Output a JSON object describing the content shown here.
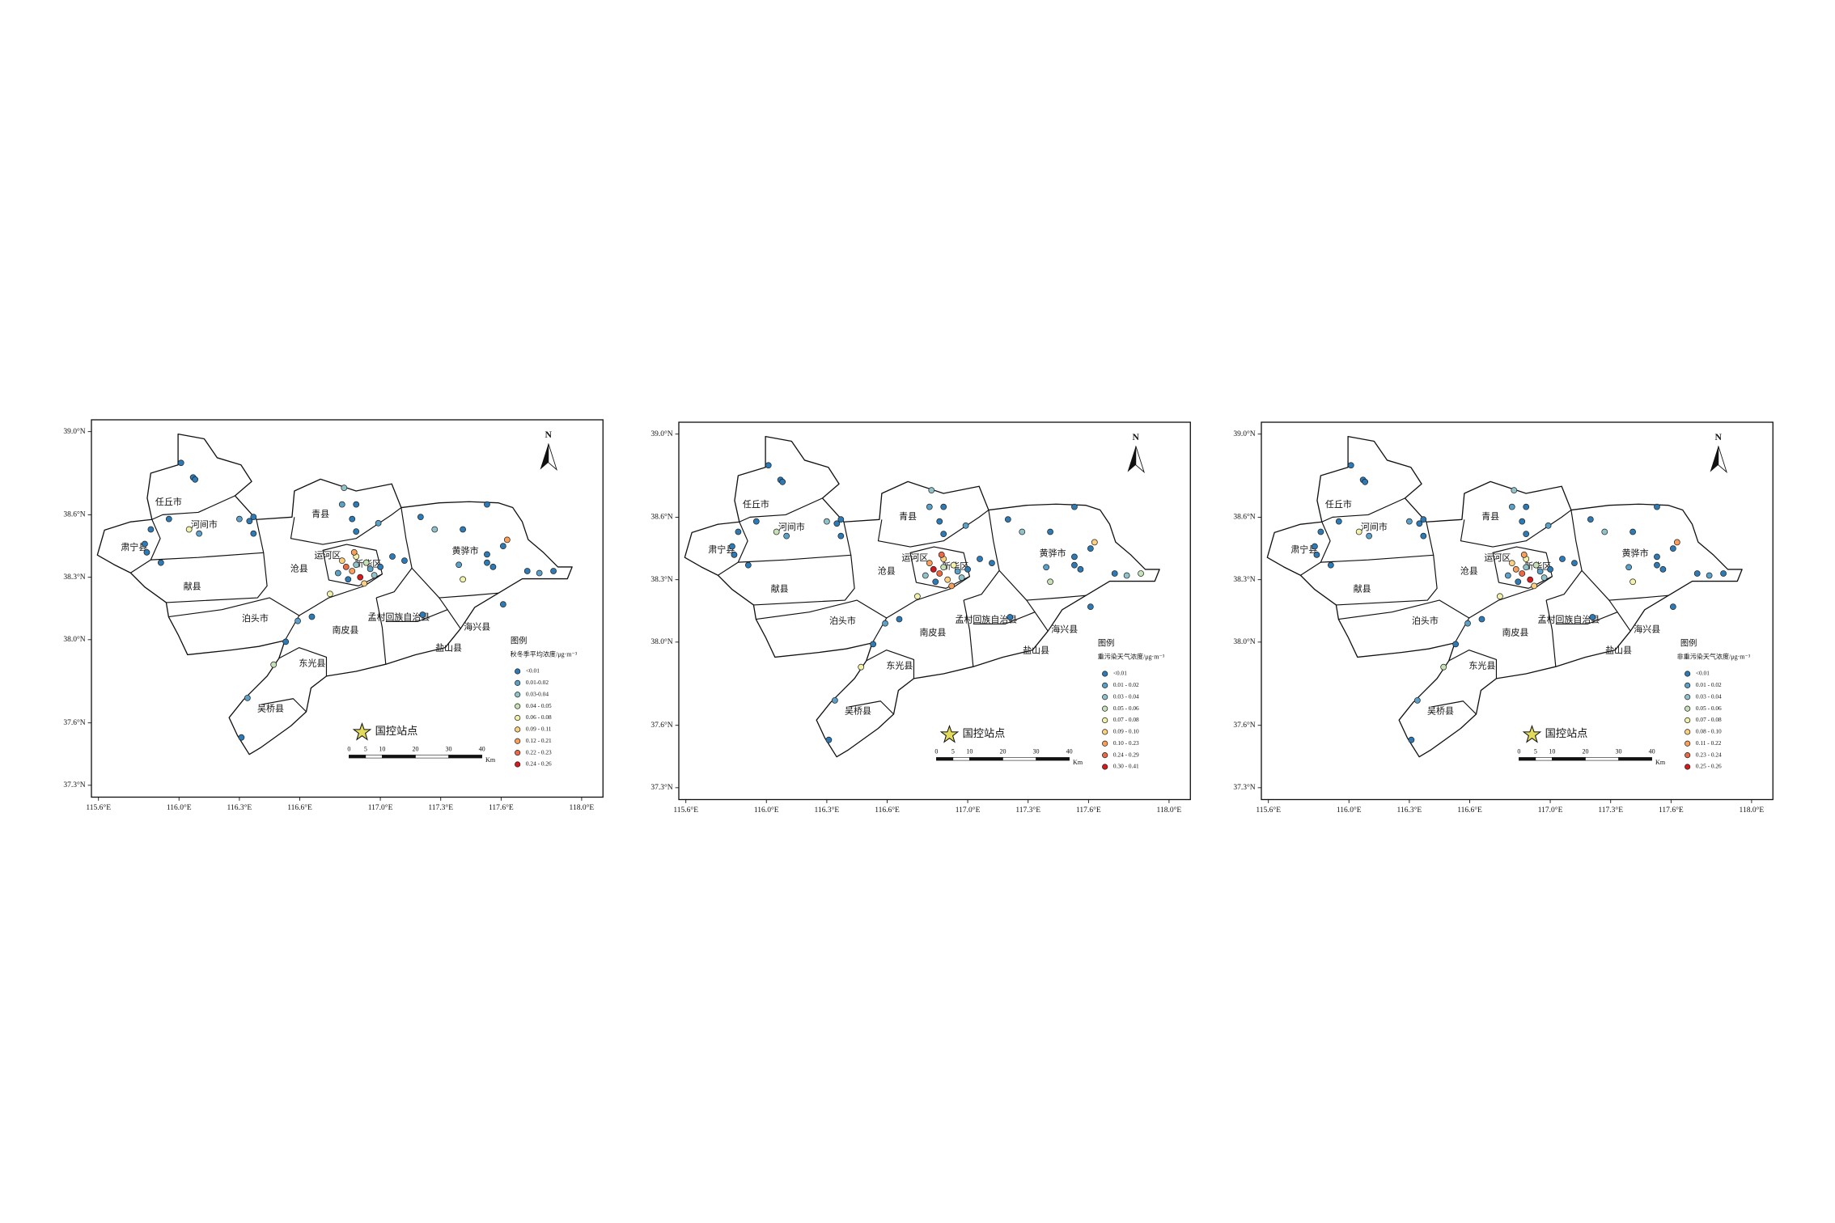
{
  "figure": {
    "lon_ticks": [
      {
        "value": 115.6,
        "label": "115.6°E"
      },
      {
        "value": 116.0,
        "label": "116.0°E"
      },
      {
        "value": 116.3,
        "label": "116.3°E"
      },
      {
        "value": 116.6,
        "label": "116.6°E"
      },
      {
        "value": 117.0,
        "label": "117.0°E"
      },
      {
        "value": 117.3,
        "label": "117.3°E"
      },
      {
        "value": 117.6,
        "label": "117.6°E"
      },
      {
        "value": 118.0,
        "label": "118.0°E"
      }
    ],
    "lon_lim": [
      115.565,
      118.106
    ],
    "lat_ticks": [
      {
        "value": 39.0,
        "label": "39.0°N"
      },
      {
        "value": 38.6,
        "label": "38.6°N"
      },
      {
        "value": 38.3,
        "label": "38.3°N"
      },
      {
        "value": 38.0,
        "label": "38.0°N"
      },
      {
        "value": 37.6,
        "label": "37.6°N"
      },
      {
        "value": 37.3,
        "label": "37.3°N"
      }
    ],
    "lat_lim": [
      37.243,
      39.057
    ],
    "counties": [
      "任丘市",
      "河间市",
      "肃宁县",
      "献县",
      "青县",
      "运河区",
      "沧县",
      "新华区",
      "黄骅市",
      "泊头市",
      "南皮县",
      "孟村回族自治县",
      "海兴县",
      "盐山县",
      "东光县",
      "吴桥县"
    ],
    "north": "N",
    "national_station": "国控站点",
    "scale_bar": {
      "ticks": [
        0,
        5,
        10,
        20,
        30,
        40
      ],
      "unit": "Km"
    },
    "legend_title": "图例",
    "class_colors": [
      "#2c7bb6",
      "#5aa0c8",
      "#8fc2c9",
      "#c4e2b6",
      "#f2f2a8",
      "#fdd07f",
      "#f99f5a",
      "#ec6a43",
      "#d7191c"
    ],
    "stations": [
      {
        "lon": 116.01,
        "lat": 38.85
      },
      {
        "lon": 116.07,
        "lat": 38.78
      },
      {
        "lon": 116.08,
        "lat": 38.77
      },
      {
        "lon": 115.95,
        "lat": 38.58
      },
      {
        "lon": 116.1,
        "lat": 38.51
      },
      {
        "lon": 116.05,
        "lat": 38.53
      },
      {
        "lon": 115.86,
        "lat": 38.53
      },
      {
        "lon": 115.83,
        "lat": 38.46
      },
      {
        "lon": 115.84,
        "lat": 38.42
      },
      {
        "lon": 115.91,
        "lat": 38.37
      },
      {
        "lon": 116.3,
        "lat": 38.58
      },
      {
        "lon": 116.35,
        "lat": 38.57
      },
      {
        "lon": 116.37,
        "lat": 38.51
      },
      {
        "lon": 116.37,
        "lat": 38.59
      },
      {
        "lon": 116.82,
        "lat": 38.73
      },
      {
        "lon": 116.81,
        "lat": 38.65
      },
      {
        "lon": 116.86,
        "lat": 38.58
      },
      {
        "lon": 116.88,
        "lat": 38.65
      },
      {
        "lon": 116.88,
        "lat": 38.52
      },
      {
        "lon": 116.99,
        "lat": 38.56
      },
      {
        "lon": 117.2,
        "lat": 38.59
      },
      {
        "lon": 117.27,
        "lat": 38.53
      },
      {
        "lon": 117.41,
        "lat": 38.53
      },
      {
        "lon": 117.53,
        "lat": 38.65
      },
      {
        "lon": 117.63,
        "lat": 38.48
      },
      {
        "lon": 117.61,
        "lat": 38.45
      },
      {
        "lon": 117.53,
        "lat": 38.37
      },
      {
        "lon": 117.56,
        "lat": 38.35
      },
      {
        "lon": 117.41,
        "lat": 38.29
      },
      {
        "lon": 117.39,
        "lat": 38.36
      },
      {
        "lon": 117.53,
        "lat": 38.41
      },
      {
        "lon": 117.73,
        "lat": 38.33
      },
      {
        "lon": 117.79,
        "lat": 38.32
      },
      {
        "lon": 117.86,
        "lat": 38.33
      },
      {
        "lon": 117.61,
        "lat": 38.17
      },
      {
        "lon": 117.21,
        "lat": 38.12
      },
      {
        "lon": 116.75,
        "lat": 38.22
      },
      {
        "lon": 116.53,
        "lat": 37.99
      },
      {
        "lon": 116.47,
        "lat": 37.88
      },
      {
        "lon": 116.34,
        "lat": 37.72
      },
      {
        "lon": 116.31,
        "lat": 37.53
      },
      {
        "lon": 116.59,
        "lat": 38.09
      },
      {
        "lon": 116.66,
        "lat": 38.11
      },
      {
        "lon": 117.12,
        "lat": 38.38
      },
      {
        "lon": 117.06,
        "lat": 38.4
      },
      {
        "lon": 116.81,
        "lat": 38.38
      },
      {
        "lon": 116.83,
        "lat": 38.35
      },
      {
        "lon": 116.86,
        "lat": 38.33
      },
      {
        "lon": 116.88,
        "lat": 38.36
      },
      {
        "lon": 116.9,
        "lat": 38.3
      },
      {
        "lon": 116.93,
        "lat": 38.37
      },
      {
        "lon": 116.95,
        "lat": 38.34
      },
      {
        "lon": 116.97,
        "lat": 38.31
      },
      {
        "lon": 116.88,
        "lat": 38.4
      },
      {
        "lon": 116.84,
        "lat": 38.29
      },
      {
        "lon": 116.92,
        "lat": 38.27
      },
      {
        "lon": 116.79,
        "lat": 38.32
      },
      {
        "lon": 117.0,
        "lat": 38.35
      },
      {
        "lon": 116.87,
        "lat": 38.42
      }
    ],
    "panels": [
      {
        "legend_subtitle": "秋冬季平均浓度/μg·m⁻³",
        "legend_labels": [
          "<0.01",
          "0.01-0.02",
          "0.03-0.04",
          "0.04 - 0.05",
          "0.06 - 0.08",
          "0.09 - 0.11",
          "0.12 - 0.21",
          "0.22 - 0.23",
          "0.24 - 0.26"
        ],
        "classes": [
          0,
          0,
          0,
          0,
          1,
          4,
          0,
          0,
          0,
          0,
          1,
          0,
          0,
          0,
          2,
          1,
          0,
          0,
          0,
          1,
          0,
          2,
          0,
          0,
          6,
          0,
          0,
          0,
          4,
          1,
          0,
          0,
          1,
          0,
          0,
          0,
          4,
          0,
          3,
          1,
          0,
          1,
          0,
          0,
          0,
          5,
          7,
          6,
          2,
          8,
          3,
          1,
          2,
          4,
          0,
          5,
          1,
          0,
          6
        ]
      },
      {
        "legend_subtitle": "重污染天气浓度/μg·m⁻³",
        "legend_labels": [
          "<0.01",
          "0.01 - 0.02",
          "0.03 - 0.04",
          "0.05 - 0.06",
          "0.07 - 0.08",
          "0.09 - 0.10",
          "0.10 - 0.23",
          "0.24 - 0.29",
          "0.30 - 0.41"
        ],
        "classes": [
          0,
          0,
          0,
          0,
          1,
          3,
          0,
          0,
          0,
          0,
          2,
          0,
          0,
          0,
          2,
          1,
          0,
          0,
          0,
          1,
          0,
          2,
          0,
          0,
          5,
          0,
          0,
          0,
          3,
          1,
          0,
          0,
          2,
          3,
          0,
          0,
          4,
          0,
          4,
          1,
          0,
          1,
          0,
          0,
          0,
          6,
          8,
          7,
          3,
          5,
          4,
          1,
          2,
          5,
          0,
          6,
          2,
          0,
          7
        ]
      },
      {
        "legend_subtitle": "非重污染天气浓度/μg·m⁻³",
        "legend_labels": [
          "<0.01",
          "0.01 - 0.02",
          "0.03 - 0.04",
          "0.05 - 0.06",
          "0.07 - 0.08",
          "0.08 - 0.10",
          "0.11 - 0.22",
          "0.23 - 0.24",
          "0.25 - 0.26"
        ],
        "classes": [
          0,
          0,
          0,
          0,
          1,
          4,
          0,
          0,
          0,
          0,
          1,
          0,
          0,
          0,
          2,
          1,
          0,
          0,
          0,
          1,
          0,
          2,
          0,
          0,
          6,
          0,
          0,
          0,
          4,
          1,
          0,
          0,
          1,
          0,
          0,
          0,
          4,
          0,
          3,
          1,
          0,
          1,
          0,
          0,
          0,
          5,
          6,
          7,
          2,
          8,
          3,
          1,
          2,
          4,
          0,
          5,
          1,
          0,
          6
        ]
      }
    ]
  }
}
